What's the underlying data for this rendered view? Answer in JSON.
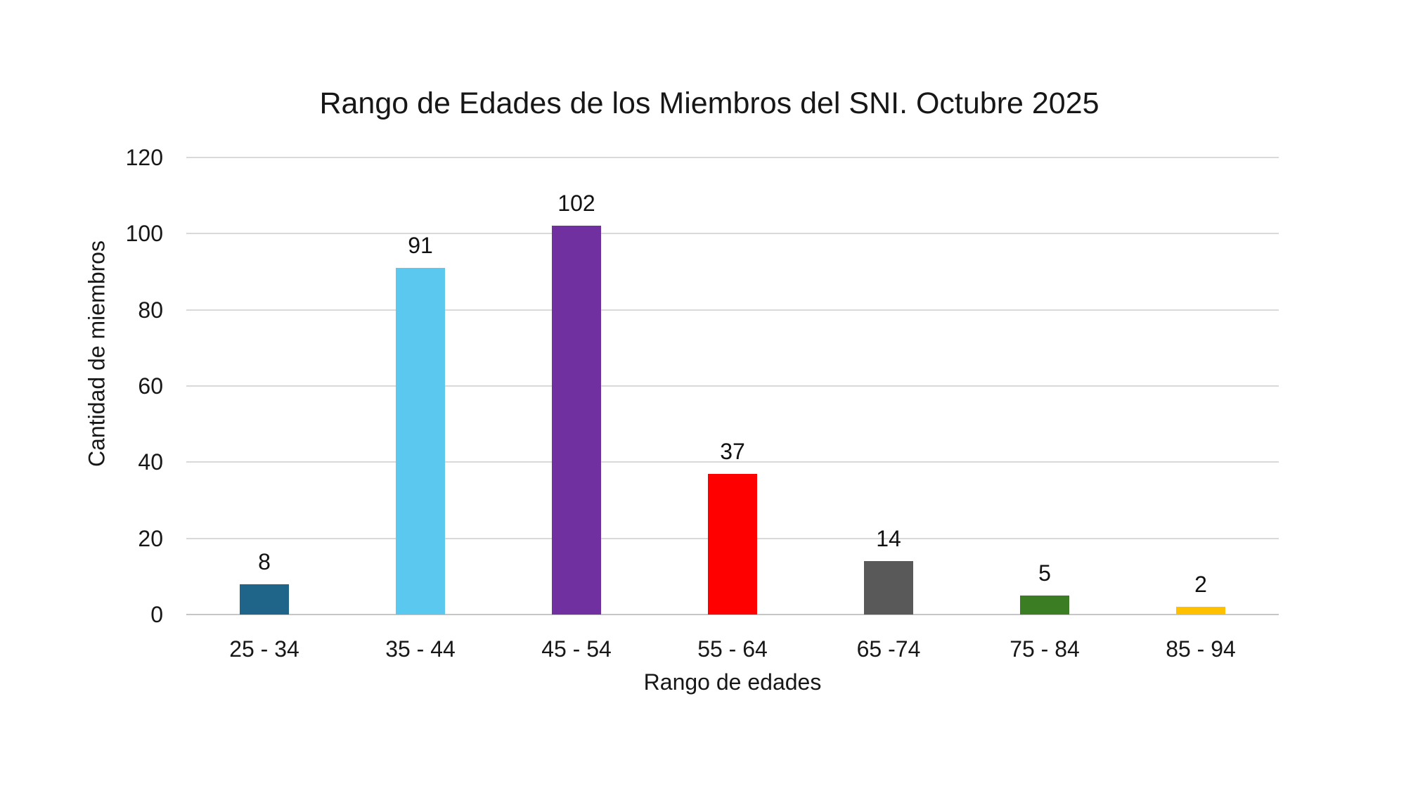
{
  "chart_data": {
    "type": "bar",
    "title": "Rango de Edades de los Miembros del SNI. Octubre 2025",
    "xlabel": "Rango de edades",
    "ylabel": "Cantidad de miembros",
    "categories": [
      "25 - 34",
      "35 - 44",
      "45 - 54",
      "55 - 64",
      "65 -74",
      "75 - 84",
      "85 - 94"
    ],
    "values": [
      8,
      91,
      102,
      37,
      14,
      5,
      2
    ],
    "data_labels": [
      "8",
      "91",
      "102",
      "37",
      "14",
      "5",
      "2"
    ],
    "bar_colors": [
      "#1F6589",
      "#5BC8F0",
      "#7030A0",
      "#FE0000",
      "#595959",
      "#3B7D23",
      "#FFC000"
    ],
    "yticks": [
      0,
      20,
      40,
      60,
      80,
      100,
      120
    ],
    "ylim": [
      0,
      120
    ],
    "grid": "horizontal",
    "legend": "none",
    "style_colors": {
      "background": "#FFFFFF",
      "gridline": "#D9D9D9",
      "axis_line": "#C6C6C6",
      "text": "#171717"
    }
  }
}
